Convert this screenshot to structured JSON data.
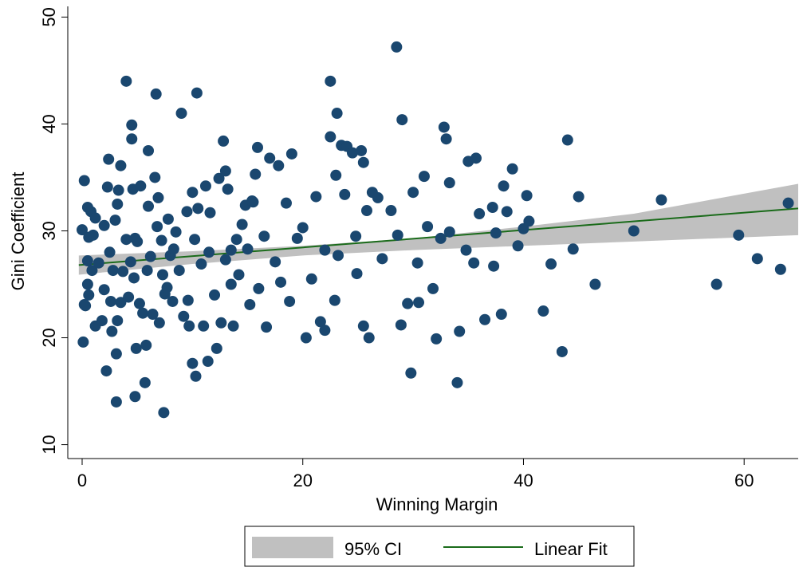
{
  "chart_data": {
    "type": "scatter",
    "x_label": "Winning Margin",
    "y_label": "Gini Coefficient",
    "xlim": [
      -1.3,
      64.9
    ],
    "ylim": [
      8.7,
      51
    ],
    "xticks": [
      0,
      20,
      40,
      60
    ],
    "yticks": [
      10,
      20,
      30,
      40,
      50
    ],
    "points": {
      "color": "#1a476f",
      "x": [
        0.2,
        0,
        0.1,
        0.2,
        0.3,
        0.5,
        0.5,
        0.5,
        0.6,
        0.6,
        0.8,
        0.9,
        1,
        1.2,
        1.2,
        1.5,
        1.8,
        2,
        2,
        2.2,
        2.3,
        2.4,
        2.5,
        2.6,
        2.7,
        2.8,
        3,
        3.1,
        3.1,
        3.2,
        3.2,
        3.3,
        3.5,
        3.5,
        3.7,
        4,
        4,
        4.2,
        4.4,
        4.5,
        4.5,
        4.6,
        4.7,
        4.8,
        4.9,
        5,
        5.2,
        5.3,
        5.5,
        5.7,
        5.8,
        5.9,
        6,
        6,
        6.2,
        6.4,
        6.6,
        6.7,
        6.8,
        6.9,
        7,
        7.2,
        7.3,
        7.4,
        7.5,
        7.8,
        8,
        8.2,
        8.5,
        8.8,
        9,
        9.2,
        9.5,
        9.6,
        9.7,
        10,
        10,
        10.2,
        10.3,
        10.4,
        10.5,
        10.8,
        11,
        11.2,
        11.4,
        11.5,
        11.6,
        12,
        12.2,
        12.4,
        12.6,
        12.8,
        13,
        13,
        13.2,
        13.5,
        13.7,
        14,
        14.2,
        14.5,
        14.8,
        15,
        15.2,
        15.5,
        15.7,
        15.9,
        16,
        16.5,
        16.7,
        17,
        17.5,
        17.8,
        18,
        18.5,
        18.8,
        19,
        19.5,
        20,
        20.3,
        20.8,
        21.2,
        21.6,
        22,
        22.5,
        22.5,
        22.9,
        23,
        23.1,
        23.2,
        23.5,
        23.8,
        24,
        24.5,
        24.8,
        25.3,
        25.5,
        25.8,
        26.3,
        26.8,
        27.2,
        28,
        28.5,
        28.6,
        29,
        29.5,
        29.8,
        30,
        30.5,
        31,
        31.3,
        31.8,
        32.1,
        32.5,
        32.8,
        33,
        33.3,
        34,
        34.2,
        34.8,
        35,
        35.5,
        35.7,
        36,
        36.5,
        37.2,
        37.5,
        38,
        38.2,
        38.5,
        39,
        39.5,
        40,
        40.3,
        41.8,
        42.5,
        43.5,
        44,
        44.5,
        45,
        46.5,
        50,
        52.5,
        57.5,
        59.5,
        61.2,
        63.3,
        64,
        4.8,
        7.7,
        8.3,
        13.5,
        15.4,
        22,
        24.9,
        25.5,
        26,
        28.9,
        30.4,
        33.3,
        37.3,
        40.5
      ],
      "y": [
        34.7,
        30.1,
        19.6,
        23.1,
        23,
        32.2,
        27.2,
        25,
        24,
        29.4,
        31.8,
        26.3,
        29.6,
        31.2,
        21.1,
        27,
        21.6,
        24.5,
        30.5,
        16.9,
        34.1,
        36.7,
        28,
        23.4,
        20.6,
        26.3,
        31,
        14,
        18.5,
        21.6,
        32.5,
        33.8,
        36.1,
        23.3,
        26.2,
        44,
        29.2,
        23.8,
        27.1,
        38.6,
        39.9,
        33.9,
        25.6,
        14.5,
        19,
        29,
        23.2,
        34.2,
        22.3,
        15.8,
        19.3,
        26.3,
        37.5,
        32.3,
        27.6,
        22.2,
        35,
        42.8,
        30.4,
        33.1,
        21.4,
        29.1,
        25.9,
        13,
        24.1,
        31.1,
        27.7,
        23.4,
        29.9,
        26.3,
        41,
        22,
        31.8,
        23.5,
        21.1,
        33.6,
        17.6,
        29.2,
        16.4,
        42.9,
        32.1,
        26.9,
        21.1,
        34.2,
        17.8,
        28,
        31.7,
        24,
        19,
        34.9,
        21.4,
        38.4,
        35.6,
        27.3,
        33.9,
        28.2,
        21.1,
        29.2,
        25.9,
        30.6,
        32.4,
        28.3,
        23.1,
        32.7,
        35.3,
        37.8,
        24.6,
        29.5,
        21,
        36.8,
        27.1,
        36.1,
        25.2,
        32.6,
        23.4,
        37.2,
        29.3,
        30.3,
        20,
        25.5,
        33.2,
        21.5,
        28.2,
        44,
        38.8,
        23.5,
        35.2,
        41,
        27.7,
        38,
        33.4,
        37.9,
        37.3,
        29.5,
        37.5,
        21.1,
        31.9,
        33.6,
        33.1,
        27.4,
        31.9,
        47.2,
        29.6,
        40.4,
        23.2,
        16.7,
        33.6,
        23.3,
        35.1,
        30.4,
        24.6,
        19.9,
        29.3,
        39.7,
        38.6,
        34.5,
        15.8,
        20.6,
        28.2,
        36.5,
        27,
        36.8,
        31.6,
        21.7,
        32.2,
        29.8,
        22.2,
        34.2,
        31.8,
        35.8,
        28.6,
        30.2,
        33.3,
        22.5,
        26.9,
        18.7,
        38.5,
        28.3,
        33.2,
        25,
        30,
        32.9,
        25,
        29.6,
        27.4,
        26.4,
        32.6,
        29.3,
        24.7,
        28.3,
        25,
        32.8,
        20.7,
        26,
        36.4,
        20,
        21.2,
        27,
        29.9,
        26.7,
        30.9
      ]
    },
    "ci": {
      "name": "95% CI",
      "color": "#c0c0c0",
      "x": [
        -0.3,
        10,
        20,
        30,
        40,
        50,
        64.9
      ],
      "lower": [
        25.9,
        26.9,
        27.7,
        28.2,
        28.6,
        29.0,
        29.6
      ],
      "upper": [
        27.7,
        28.1,
        28.6,
        29.3,
        30.4,
        31.6,
        34.4
      ]
    },
    "fit": {
      "name": "Linear Fit",
      "color": "#1a6b1a",
      "x": [
        -0.3,
        64.9
      ],
      "values": [
        26.8,
        32.1
      ]
    }
  }
}
